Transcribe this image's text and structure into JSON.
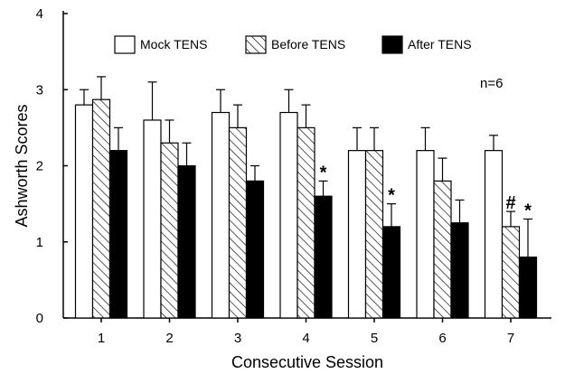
{
  "chart_data": {
    "type": "bar",
    "xlabel": "Consecutive Session",
    "ylabel": "Ashworth Scores",
    "ylim": [
      0,
      4
    ],
    "yticks": [
      "0",
      "1",
      "2",
      "3",
      "4"
    ],
    "categories": [
      "1",
      "2",
      "3",
      "4",
      "5",
      "6",
      "7"
    ],
    "legend_position": "top",
    "annotation": "n=6",
    "series": [
      {
        "name": "Mock TENS",
        "fill": "white",
        "values": [
          2.8,
          2.6,
          2.7,
          2.7,
          2.2,
          2.2,
          2.2
        ],
        "errors": [
          0.2,
          0.5,
          0.3,
          0.3,
          0.3,
          0.3,
          0.2
        ]
      },
      {
        "name": "Before TENS",
        "fill": "hatch",
        "values": [
          2.87,
          2.3,
          2.5,
          2.5,
          2.2,
          1.8,
          1.2
        ],
        "errors": [
          0.3,
          0.3,
          0.3,
          0.3,
          0.3,
          0.3,
          0.2
        ]
      },
      {
        "name": "After TENS",
        "fill": "black",
        "values": [
          2.2,
          2.0,
          1.8,
          1.6,
          1.2,
          1.25,
          0.8
        ],
        "errors": [
          0.3,
          0.3,
          0.2,
          0.2,
          0.3,
          0.3,
          0.5
        ]
      }
    ],
    "markers": [
      {
        "series": 2,
        "index": 3,
        "symbol": "*"
      },
      {
        "series": 2,
        "index": 4,
        "symbol": "*"
      },
      {
        "series": 1,
        "index": 6,
        "symbol": "#"
      },
      {
        "series": 2,
        "index": 6,
        "symbol": "*"
      }
    ]
  }
}
